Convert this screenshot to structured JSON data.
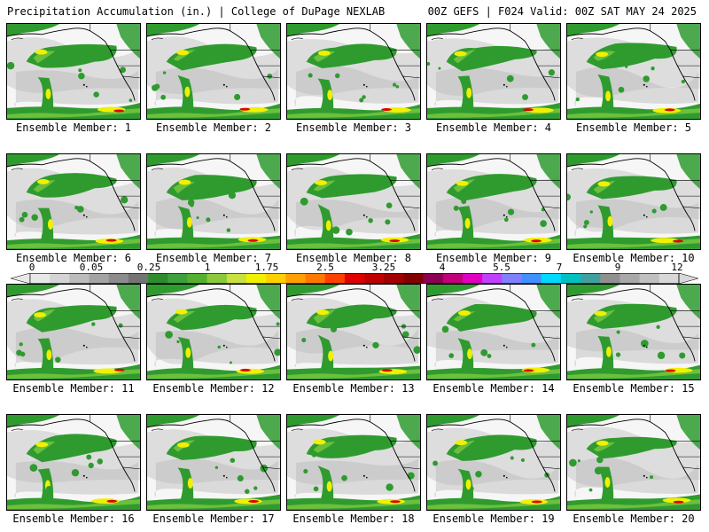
{
  "header": {
    "title": "Precipitation Accumulation (in.) | College of DuPage NEXLAB",
    "run_info": "00Z GEFS | F024 Valid: 00Z SAT MAY 24 2025"
  },
  "members": [
    "Ensemble Member: 1",
    "Ensemble Member: 2",
    "Ensemble Member: 3",
    "Ensemble Member: 4",
    "Ensemble Member: 5",
    "Ensemble Member: 6",
    "Ensemble Member: 7",
    "Ensemble Member: 8",
    "Ensemble Member: 9",
    "Ensemble Member: 10",
    "Ensemble Member: 11",
    "Ensemble Member: 12",
    "Ensemble Member: 13",
    "Ensemble Member: 14",
    "Ensemble Member: 15",
    "Ensemble Member: 16",
    "Ensemble Member: 17",
    "Ensemble Member: 18",
    "Ensemble Member: 19",
    "Ensemble Member: 20"
  ],
  "colorbar": {
    "labels": [
      "0",
      "0.05",
      "0.25",
      "1",
      "1.75",
      "2.5",
      "3.25",
      "4",
      "5.5",
      "7",
      "9",
      "12"
    ],
    "colors": [
      "#e8e8e8",
      "#d4d4d4",
      "#bcbcbc",
      "#a4a4a4",
      "#8c8c8c",
      "#747474",
      "#2e8b2e",
      "#3da03d",
      "#55b030",
      "#8cc83c",
      "#c8e040",
      "#f0f000",
      "#ffd000",
      "#ffa000",
      "#ff7800",
      "#ff4000",
      "#e00000",
      "#c00000",
      "#a00000",
      "#800000",
      "#8b0050",
      "#c0007a",
      "#e000c0",
      "#c040ff",
      "#8080ff",
      "#4090ff",
      "#00d8ff",
      "#00c0c0",
      "#40a0a0",
      "#909090",
      "#a8a8a8",
      "#c0c0c0",
      "#d8d8d8"
    ]
  },
  "colors": {
    "land_gray": "#c8c8c8",
    "precip_green": "#2f9b2f",
    "precip_light_green": "#6cc03c",
    "precip_yellow": "#f0f000",
    "precip_red": "#e00000"
  }
}
